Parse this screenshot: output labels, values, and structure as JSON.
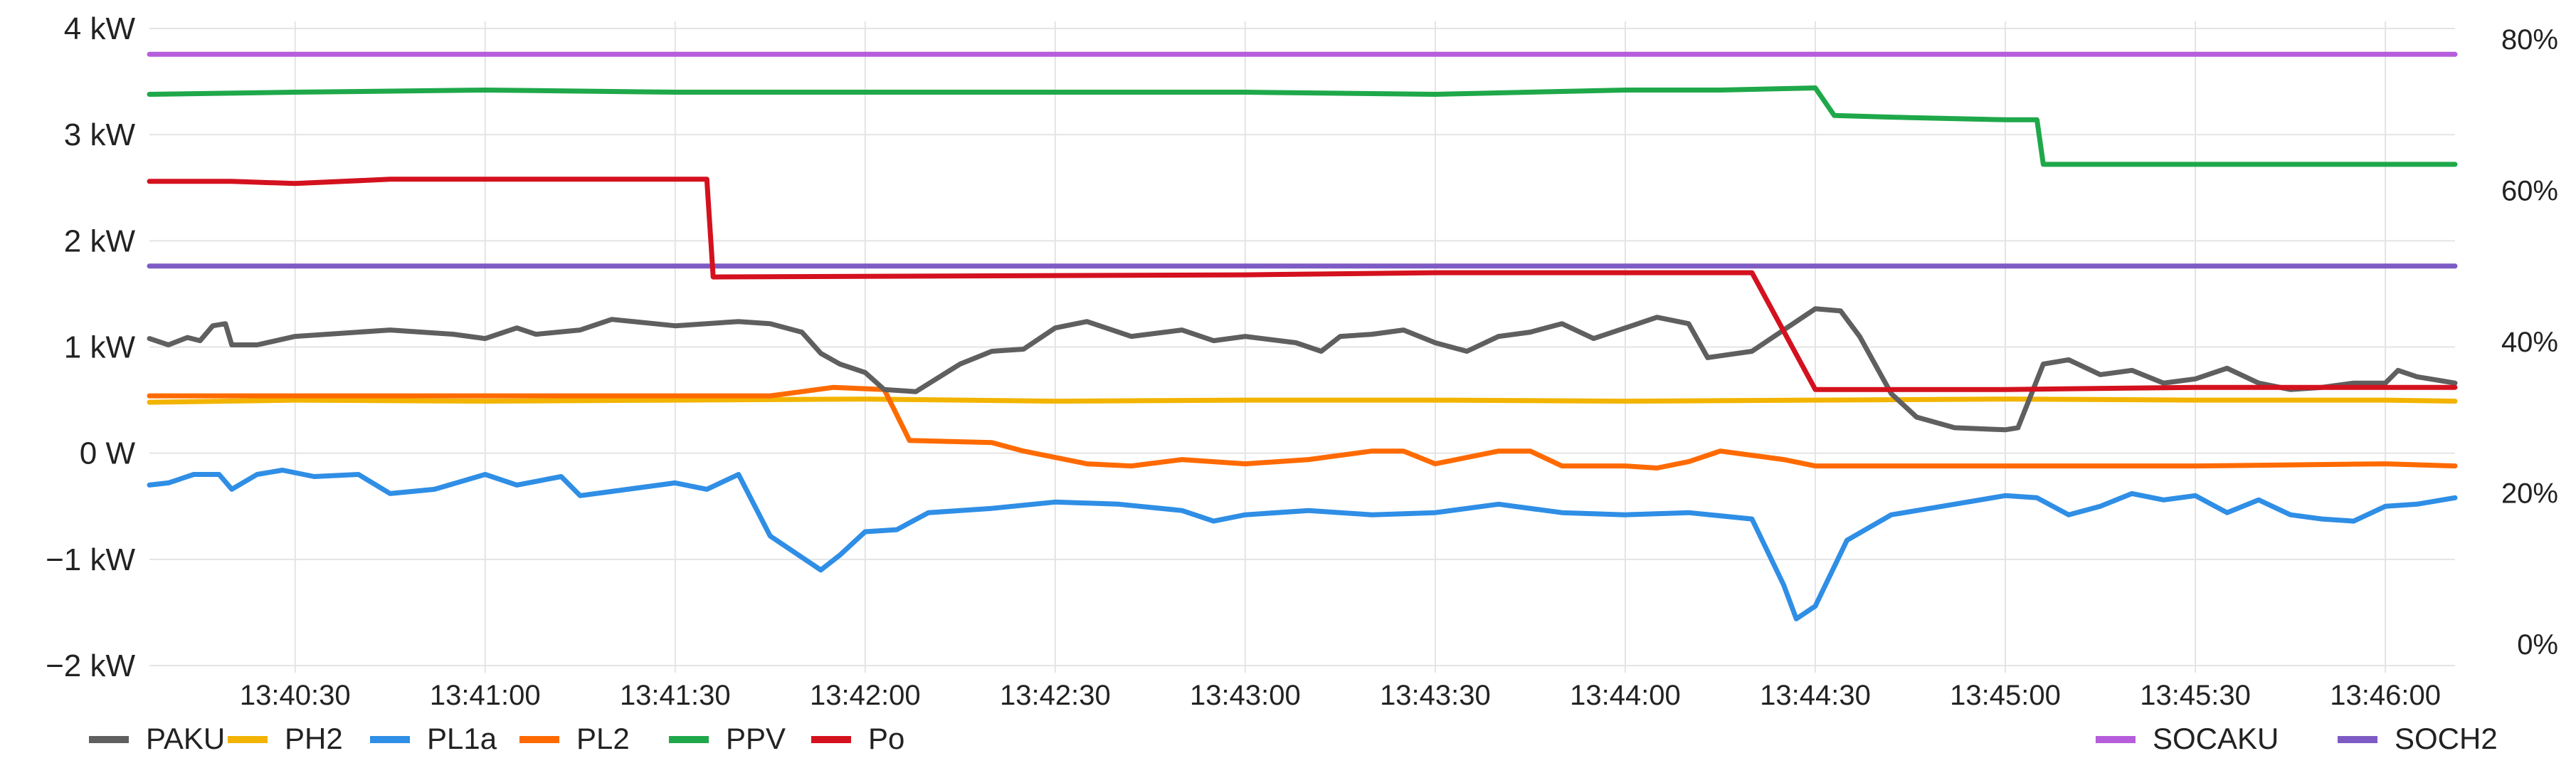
{
  "chart_data": {
    "type": "line",
    "x_ticks": [
      "13:40:30",
      "13:41:00",
      "13:41:30",
      "13:42:00",
      "13:42:30",
      "13:43:00",
      "13:43:30",
      "13:44:00",
      "13:44:30",
      "13:45:00",
      "13:45:30",
      "13:46:00"
    ],
    "x_range": [
      "13:40:07",
      "13:46:11"
    ],
    "y_left": {
      "ticks": [
        "4 kW",
        "3 kW",
        "2 kW",
        "1 kW",
        "0 W",
        "−1 kW",
        "−2 kW"
      ],
      "range_kw": [
        -2,
        4
      ]
    },
    "y_right": {
      "ticks": [
        "80%",
        "60%",
        "40%",
        "20%",
        "0%"
      ],
      "range_pct": [
        0,
        80
      ]
    },
    "grid": true,
    "legend_left": [
      "PAKU",
      "PH2",
      "PL1a",
      "PL2",
      "PPV",
      "Po"
    ],
    "legend_right": [
      "SOCAKU",
      "SOCH2"
    ],
    "series": [
      {
        "name": "PAKU",
        "axis": "left",
        "color": "#5f5f5f",
        "points": [
          [
            "13:40:07",
            1.08
          ],
          [
            "13:40:10",
            1.02
          ],
          [
            "13:40:13",
            1.09
          ],
          [
            "13:40:15",
            1.06
          ],
          [
            "13:40:17",
            1.2
          ],
          [
            "13:40:19",
            1.22
          ],
          [
            "13:40:20",
            1.02
          ],
          [
            "13:40:24",
            1.02
          ],
          [
            "13:40:30",
            1.1
          ],
          [
            "13:40:45",
            1.16
          ],
          [
            "13:40:55",
            1.12
          ],
          [
            "13:41:00",
            1.08
          ],
          [
            "13:41:05",
            1.18
          ],
          [
            "13:41:08",
            1.12
          ],
          [
            "13:41:15",
            1.16
          ],
          [
            "13:41:20",
            1.26
          ],
          [
            "13:41:30",
            1.2
          ],
          [
            "13:41:40",
            1.24
          ],
          [
            "13:41:45",
            1.22
          ],
          [
            "13:41:50",
            1.14
          ],
          [
            "13:41:53",
            0.94
          ],
          [
            "13:41:56",
            0.84
          ],
          [
            "13:42:00",
            0.76
          ],
          [
            "13:42:03",
            0.6
          ],
          [
            "13:42:08",
            0.58
          ],
          [
            "13:42:15",
            0.84
          ],
          [
            "13:42:20",
            0.96
          ],
          [
            "13:42:25",
            0.98
          ],
          [
            "13:42:30",
            1.18
          ],
          [
            "13:42:35",
            1.24
          ],
          [
            "13:42:42",
            1.1
          ],
          [
            "13:42:50",
            1.16
          ],
          [
            "13:42:55",
            1.06
          ],
          [
            "13:43:00",
            1.1
          ],
          [
            "13:43:08",
            1.04
          ],
          [
            "13:43:12",
            0.96
          ],
          [
            "13:43:15",
            1.1
          ],
          [
            "13:43:20",
            1.12
          ],
          [
            "13:43:25",
            1.16
          ],
          [
            "13:43:30",
            1.04
          ],
          [
            "13:43:35",
            0.96
          ],
          [
            "13:43:40",
            1.1
          ],
          [
            "13:43:45",
            1.14
          ],
          [
            "13:43:50",
            1.22
          ],
          [
            "13:43:55",
            1.08
          ],
          [
            "13:44:00",
            1.18
          ],
          [
            "13:44:05",
            1.28
          ],
          [
            "13:44:10",
            1.22
          ],
          [
            "13:44:13",
            0.9
          ],
          [
            "13:44:20",
            0.96
          ],
          [
            "13:44:27",
            1.24
          ],
          [
            "13:44:30",
            1.36
          ],
          [
            "13:44:34",
            1.34
          ],
          [
            "13:44:37",
            1.1
          ],
          [
            "13:44:42",
            0.56
          ],
          [
            "13:44:46",
            0.34
          ],
          [
            "13:44:52",
            0.24
          ],
          [
            "13:45:00",
            0.22
          ],
          [
            "13:45:02",
            0.24
          ],
          [
            "13:45:06",
            0.84
          ],
          [
            "13:45:10",
            0.88
          ],
          [
            "13:45:15",
            0.74
          ],
          [
            "13:45:20",
            0.78
          ],
          [
            "13:45:25",
            0.66
          ],
          [
            "13:45:30",
            0.7
          ],
          [
            "13:45:35",
            0.8
          ],
          [
            "13:45:40",
            0.66
          ],
          [
            "13:45:45",
            0.6
          ],
          [
            "13:45:50",
            0.62
          ],
          [
            "13:45:55",
            0.66
          ],
          [
            "13:46:00",
            0.66
          ],
          [
            "13:46:02",
            0.78
          ],
          [
            "13:46:05",
            0.72
          ],
          [
            "13:46:09",
            0.68
          ],
          [
            "13:46:11",
            0.66
          ]
        ]
      },
      {
        "name": "PH2",
        "axis": "left",
        "color": "#f2b400",
        "points": [
          [
            "13:40:07",
            0.48
          ],
          [
            "13:40:30",
            0.5
          ],
          [
            "13:41:00",
            0.49
          ],
          [
            "13:41:30",
            0.5
          ],
          [
            "13:42:00",
            0.51
          ],
          [
            "13:42:30",
            0.49
          ],
          [
            "13:43:00",
            0.5
          ],
          [
            "13:43:30",
            0.5
          ],
          [
            "13:44:00",
            0.49
          ],
          [
            "13:44:30",
            0.5
          ],
          [
            "13:45:00",
            0.51
          ],
          [
            "13:45:30",
            0.5
          ],
          [
            "13:46:00",
            0.5
          ],
          [
            "13:46:11",
            0.49
          ]
        ]
      },
      {
        "name": "PL1a",
        "axis": "left",
        "color": "#2f8ee5",
        "points": [
          [
            "13:40:07",
            -0.3
          ],
          [
            "13:40:10",
            -0.28
          ],
          [
            "13:40:14",
            -0.2
          ],
          [
            "13:40:18",
            -0.2
          ],
          [
            "13:40:20",
            -0.34
          ],
          [
            "13:40:24",
            -0.2
          ],
          [
            "13:40:28",
            -0.16
          ],
          [
            "13:40:33",
            -0.22
          ],
          [
            "13:40:40",
            -0.2
          ],
          [
            "13:40:45",
            -0.38
          ],
          [
            "13:40:52",
            -0.34
          ],
          [
            "13:41:00",
            -0.2
          ],
          [
            "13:41:05",
            -0.3
          ],
          [
            "13:41:12",
            -0.22
          ],
          [
            "13:41:15",
            -0.4
          ],
          [
            "13:41:20",
            -0.36
          ],
          [
            "13:41:30",
            -0.28
          ],
          [
            "13:41:35",
            -0.34
          ],
          [
            "13:41:40",
            -0.2
          ],
          [
            "13:41:45",
            -0.78
          ],
          [
            "13:41:53",
            -1.1
          ],
          [
            "13:41:56",
            -0.96
          ],
          [
            "13:42:00",
            -0.74
          ],
          [
            "13:42:05",
            -0.72
          ],
          [
            "13:42:10",
            -0.56
          ],
          [
            "13:42:20",
            -0.52
          ],
          [
            "13:42:30",
            -0.46
          ],
          [
            "13:42:40",
            -0.48
          ],
          [
            "13:42:50",
            -0.54
          ],
          [
            "13:42:55",
            -0.64
          ],
          [
            "13:43:00",
            -0.58
          ],
          [
            "13:43:10",
            -0.54
          ],
          [
            "13:43:20",
            -0.58
          ],
          [
            "13:43:30",
            -0.56
          ],
          [
            "13:43:40",
            -0.48
          ],
          [
            "13:43:50",
            -0.56
          ],
          [
            "13:44:00",
            -0.58
          ],
          [
            "13:44:10",
            -0.56
          ],
          [
            "13:44:20",
            -0.62
          ],
          [
            "13:44:25",
            -1.24
          ],
          [
            "13:44:27",
            -1.56
          ],
          [
            "13:44:30",
            -1.44
          ],
          [
            "13:44:35",
            -0.82
          ],
          [
            "13:44:42",
            -0.58
          ],
          [
            "13:44:50",
            -0.5
          ],
          [
            "13:45:00",
            -0.4
          ],
          [
            "13:45:05",
            -0.42
          ],
          [
            "13:45:10",
            -0.58
          ],
          [
            "13:45:15",
            -0.5
          ],
          [
            "13:45:20",
            -0.38
          ],
          [
            "13:45:25",
            -0.44
          ],
          [
            "13:45:30",
            -0.4
          ],
          [
            "13:45:35",
            -0.56
          ],
          [
            "13:45:40",
            -0.44
          ],
          [
            "13:45:45",
            -0.58
          ],
          [
            "13:45:50",
            -0.62
          ],
          [
            "13:45:55",
            -0.64
          ],
          [
            "13:46:00",
            -0.5
          ],
          [
            "13:46:05",
            -0.48
          ],
          [
            "13:46:11",
            -0.42
          ]
        ]
      },
      {
        "name": "PL2",
        "axis": "left",
        "color": "#ff6a00",
        "points": [
          [
            "13:40:07",
            0.54
          ],
          [
            "13:41:45",
            0.54
          ],
          [
            "13:41:50",
            0.58
          ],
          [
            "13:41:55",
            0.62
          ],
          [
            "13:42:03",
            0.6
          ],
          [
            "13:42:07",
            0.12
          ],
          [
            "13:42:20",
            0.1
          ],
          [
            "13:42:25",
            0.02
          ],
          [
            "13:42:35",
            -0.1
          ],
          [
            "13:42:42",
            -0.12
          ],
          [
            "13:42:50",
            -0.06
          ],
          [
            "13:43:00",
            -0.1
          ],
          [
            "13:43:10",
            -0.06
          ],
          [
            "13:43:20",
            0.02
          ],
          [
            "13:43:25",
            0.02
          ],
          [
            "13:43:30",
            -0.1
          ],
          [
            "13:43:40",
            0.02
          ],
          [
            "13:43:45",
            0.02
          ],
          [
            "13:43:50",
            -0.12
          ],
          [
            "13:44:00",
            -0.12
          ],
          [
            "13:44:05",
            -0.14
          ],
          [
            "13:44:10",
            -0.08
          ],
          [
            "13:44:15",
            0.02
          ],
          [
            "13:44:20",
            -0.02
          ],
          [
            "13:44:25",
            -0.06
          ],
          [
            "13:44:30",
            -0.12
          ],
          [
            "13:45:30",
            -0.12
          ],
          [
            "13:46:00",
            -0.1
          ],
          [
            "13:46:11",
            -0.12
          ]
        ]
      },
      {
        "name": "PPV",
        "axis": "left",
        "color": "#1fa84a",
        "points": [
          [
            "13:40:07",
            3.38
          ],
          [
            "13:40:30",
            3.4
          ],
          [
            "13:41:00",
            3.42
          ],
          [
            "13:41:30",
            3.4
          ],
          [
            "13:42:00",
            3.4
          ],
          [
            "13:42:30",
            3.4
          ],
          [
            "13:43:00",
            3.4
          ],
          [
            "13:43:30",
            3.38
          ],
          [
            "13:44:00",
            3.42
          ],
          [
            "13:44:15",
            3.42
          ],
          [
            "13:44:30",
            3.44
          ],
          [
            "13:44:33",
            3.18
          ],
          [
            "13:44:45",
            3.16
          ],
          [
            "13:45:00",
            3.14
          ],
          [
            "13:45:05",
            3.14
          ],
          [
            "13:45:06",
            2.72
          ],
          [
            "13:45:30",
            2.72
          ],
          [
            "13:46:00",
            2.72
          ],
          [
            "13:46:11",
            2.72
          ]
        ]
      },
      {
        "name": "Po",
        "axis": "left",
        "color": "#d4111e",
        "points": [
          [
            "13:40:07",
            2.56
          ],
          [
            "13:40:20",
            2.56
          ],
          [
            "13:40:30",
            2.54
          ],
          [
            "13:40:45",
            2.58
          ],
          [
            "13:41:00",
            2.58
          ],
          [
            "13:41:30",
            2.58
          ],
          [
            "13:41:35",
            2.58
          ],
          [
            "13:41:36",
            1.66
          ],
          [
            "13:43:00",
            1.68
          ],
          [
            "13:43:30",
            1.7
          ],
          [
            "13:44:00",
            1.7
          ],
          [
            "13:44:20",
            1.7
          ],
          [
            "13:44:30",
            0.6
          ],
          [
            "13:45:00",
            0.6
          ],
          [
            "13:45:30",
            0.62
          ],
          [
            "13:46:00",
            0.62
          ],
          [
            "13:46:11",
            0.62
          ]
        ]
      },
      {
        "name": "SOCAKU",
        "axis": "right",
        "color": "#b55ddb",
        "points": [
          [
            "13:40:07",
            78
          ],
          [
            "13:46:11",
            78
          ]
        ]
      },
      {
        "name": "SOCH2",
        "axis": "right",
        "color": "#7e5bc4",
        "points": [
          [
            "13:40:07",
            50
          ],
          [
            "13:46:11",
            50
          ]
        ]
      }
    ]
  }
}
